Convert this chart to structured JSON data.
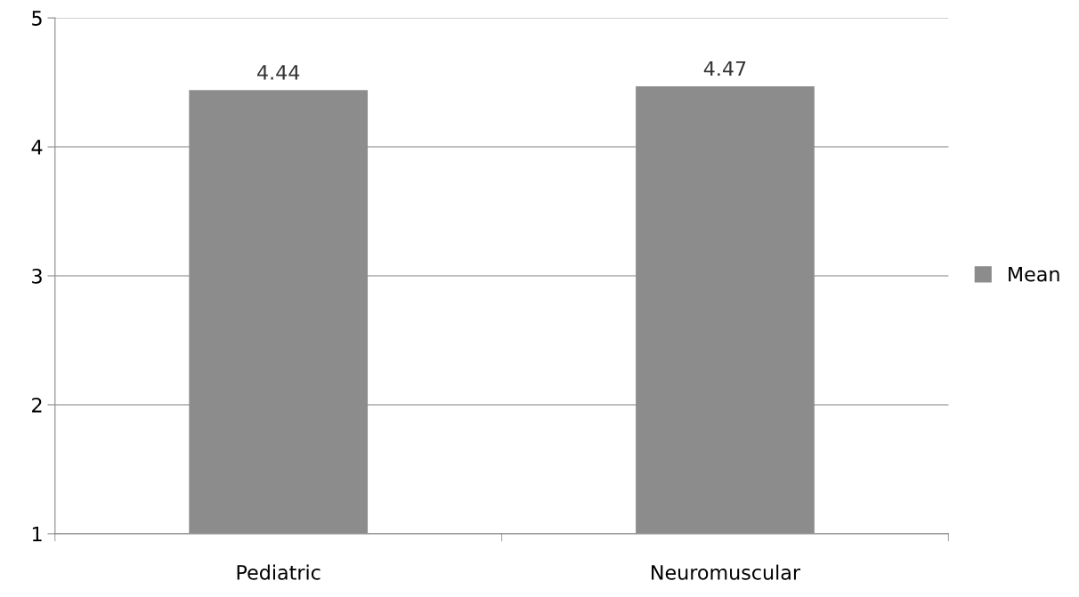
{
  "chart_data": {
    "type": "bar",
    "categories": [
      "Pediatric",
      "Neuromuscular"
    ],
    "series": [
      {
        "name": "Mean",
        "color": "#8c8c8c",
        "values": [
          4.44,
          4.47
        ]
      }
    ],
    "ylim": [
      1,
      5
    ],
    "yticks": [
      1,
      2,
      3,
      4,
      5
    ],
    "grid": "y",
    "legend": "right",
    "data_labels": true
  }
}
